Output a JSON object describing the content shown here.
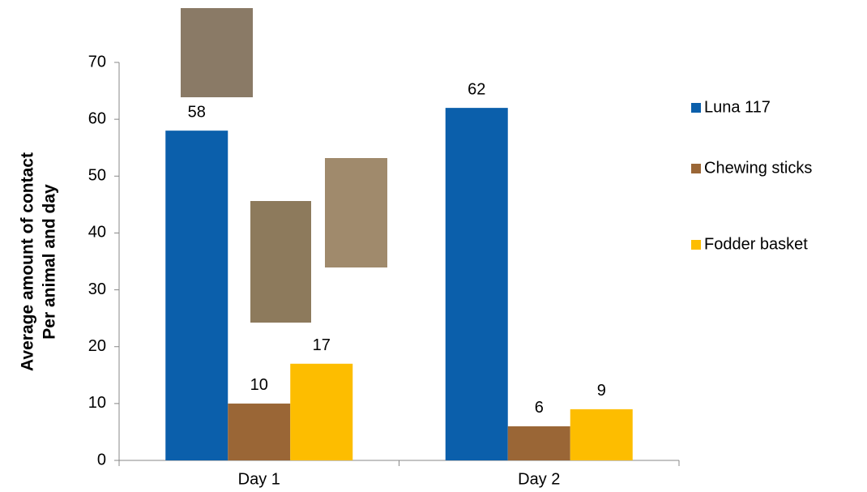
{
  "chart_data": {
    "type": "bar",
    "y_label": [
      "Average amount of contact",
      "Per animal and day"
    ],
    "categories": [
      "Day 1",
      "Day 2"
    ],
    "series": [
      {
        "name": "Luna 117",
        "color": "#0b5fab",
        "values": [
          58,
          62
        ]
      },
      {
        "name": "Chewing sticks",
        "color": "#9a6636",
        "values": [
          10,
          6
        ]
      },
      {
        "name": "Fodder basket",
        "color": "#fdbd00",
        "values": [
          17,
          9
        ]
      }
    ],
    "ylim": [
      0,
      70
    ],
    "yticks": [
      0,
      10,
      20,
      30,
      40,
      50,
      60,
      70
    ],
    "legend": "right"
  }
}
